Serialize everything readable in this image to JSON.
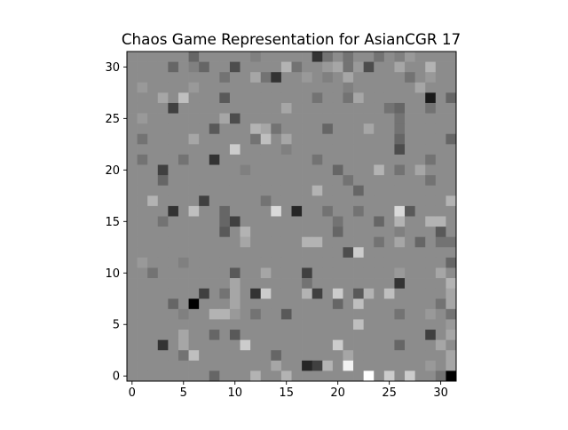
{
  "chart_data": {
    "type": "heatmap",
    "title": "Chaos Game Representation for AsianCGR 17",
    "xlabel": "",
    "ylabel": "",
    "colormap": "gray",
    "xlim": [
      -0.5,
      31.5
    ],
    "ylim": [
      31.5,
      -0.5
    ],
    "x_ticks": [
      0,
      5,
      10,
      15,
      20,
      25,
      30
    ],
    "y_ticks": [
      0,
      5,
      10,
      15,
      20,
      25,
      30
    ],
    "grid": false,
    "value_range": [
      0,
      1
    ],
    "values": [
      [
        0.55,
        0.55,
        0.55,
        0.55,
        0.55,
        0.55,
        0.4,
        0.55,
        0.55,
        0.55,
        0.55,
        0.55,
        0.5,
        0.55,
        0.55,
        0.55,
        0.55,
        0.55,
        0.2,
        0.45,
        0.55,
        0.45,
        0.55,
        0.55,
        0.45,
        0.55,
        0.5,
        0.6,
        0.55,
        0.55,
        0.55,
        0.55
      ],
      [
        0.55,
        0.55,
        0.55,
        0.55,
        0.4,
        0.55,
        0.5,
        0.4,
        0.55,
        0.55,
        0.3,
        0.55,
        0.55,
        0.55,
        0.55,
        0.7,
        0.45,
        0.55,
        0.55,
        0.6,
        0.65,
        0.45,
        0.6,
        0.3,
        0.55,
        0.55,
        0.65,
        0.55,
        0.55,
        0.7,
        0.55,
        0.55
      ],
      [
        0.55,
        0.55,
        0.55,
        0.55,
        0.55,
        0.55,
        0.55,
        0.55,
        0.55,
        0.45,
        0.55,
        0.55,
        0.65,
        0.45,
        0.2,
        0.55,
        0.55,
        0.6,
        0.55,
        0.5,
        0.55,
        0.65,
        0.55,
        0.55,
        0.55,
        0.55,
        0.55,
        0.45,
        0.55,
        0.6,
        0.55,
        0.55
      ],
      [
        0.55,
        0.6,
        0.55,
        0.55,
        0.55,
        0.55,
        0.6,
        0.55,
        0.55,
        0.55,
        0.55,
        0.55,
        0.55,
        0.55,
        0.55,
        0.55,
        0.55,
        0.55,
        0.55,
        0.55,
        0.55,
        0.5,
        0.55,
        0.55,
        0.55,
        0.55,
        0.55,
        0.55,
        0.65,
        0.55,
        0.55,
        0.55
      ],
      [
        0.55,
        0.55,
        0.55,
        0.65,
        0.55,
        0.75,
        0.55,
        0.55,
        0.55,
        0.35,
        0.55,
        0.55,
        0.55,
        0.55,
        0.55,
        0.55,
        0.55,
        0.55,
        0.45,
        0.55,
        0.55,
        0.45,
        0.65,
        0.55,
        0.55,
        0.55,
        0.55,
        0.55,
        0.55,
        0.1,
        0.55,
        0.4
      ],
      [
        0.55,
        0.55,
        0.55,
        0.55,
        0.25,
        0.55,
        0.55,
        0.55,
        0.55,
        0.55,
        0.55,
        0.55,
        0.55,
        0.55,
        0.55,
        0.65,
        0.55,
        0.55,
        0.55,
        0.55,
        0.55,
        0.55,
        0.55,
        0.55,
        0.55,
        0.45,
        0.4,
        0.55,
        0.55,
        0.45,
        0.55,
        0.55
      ],
      [
        0.55,
        0.6,
        0.55,
        0.55,
        0.55,
        0.55,
        0.55,
        0.55,
        0.55,
        0.65,
        0.3,
        0.55,
        0.55,
        0.55,
        0.55,
        0.55,
        0.55,
        0.55,
        0.55,
        0.55,
        0.55,
        0.55,
        0.55,
        0.55,
        0.55,
        0.55,
        0.45,
        0.55,
        0.55,
        0.55,
        0.55,
        0.55
      ],
      [
        0.55,
        0.55,
        0.55,
        0.55,
        0.55,
        0.55,
        0.55,
        0.55,
        0.35,
        0.55,
        0.55,
        0.55,
        0.7,
        0.65,
        0.45,
        0.55,
        0.55,
        0.55,
        0.55,
        0.4,
        0.55,
        0.55,
        0.55,
        0.65,
        0.55,
        0.55,
        0.45,
        0.55,
        0.55,
        0.55,
        0.55,
        0.55
      ],
      [
        0.55,
        0.45,
        0.55,
        0.55,
        0.55,
        0.55,
        0.65,
        0.55,
        0.55,
        0.55,
        0.55,
        0.55,
        0.45,
        0.75,
        0.55,
        0.65,
        0.55,
        0.55,
        0.55,
        0.55,
        0.55,
        0.55,
        0.55,
        0.55,
        0.55,
        0.55,
        0.4,
        0.55,
        0.55,
        0.55,
        0.55,
        0.4
      ],
      [
        0.55,
        0.55,
        0.55,
        0.55,
        0.55,
        0.55,
        0.55,
        0.55,
        0.55,
        0.55,
        0.8,
        0.55,
        0.55,
        0.55,
        0.55,
        0.5,
        0.55,
        0.55,
        0.55,
        0.55,
        0.55,
        0.55,
        0.55,
        0.55,
        0.55,
        0.55,
        0.3,
        0.55,
        0.55,
        0.55,
        0.55,
        0.55
      ],
      [
        0.55,
        0.45,
        0.55,
        0.55,
        0.55,
        0.45,
        0.55,
        0.55,
        0.2,
        0.55,
        0.55,
        0.55,
        0.55,
        0.55,
        0.55,
        0.55,
        0.55,
        0.55,
        0.45,
        0.55,
        0.55,
        0.55,
        0.55,
        0.55,
        0.55,
        0.55,
        0.55,
        0.55,
        0.55,
        0.45,
        0.55,
        0.55
      ],
      [
        0.55,
        0.55,
        0.55,
        0.25,
        0.55,
        0.55,
        0.55,
        0.55,
        0.55,
        0.55,
        0.55,
        0.5,
        0.55,
        0.55,
        0.55,
        0.55,
        0.55,
        0.55,
        0.55,
        0.55,
        0.4,
        0.55,
        0.55,
        0.55,
        0.7,
        0.55,
        0.45,
        0.55,
        0.65,
        0.55,
        0.55,
        0.55
      ],
      [
        0.55,
        0.55,
        0.55,
        0.4,
        0.55,
        0.55,
        0.55,
        0.55,
        0.55,
        0.55,
        0.55,
        0.55,
        0.55,
        0.55,
        0.55,
        0.55,
        0.55,
        0.55,
        0.55,
        0.55,
        0.55,
        0.45,
        0.55,
        0.55,
        0.55,
        0.55,
        0.55,
        0.55,
        0.55,
        0.45,
        0.55,
        0.55
      ],
      [
        0.55,
        0.55,
        0.55,
        0.55,
        0.55,
        0.55,
        0.55,
        0.55,
        0.55,
        0.55,
        0.55,
        0.55,
        0.55,
        0.55,
        0.55,
        0.55,
        0.55,
        0.55,
        0.7,
        0.55,
        0.55,
        0.55,
        0.4,
        0.55,
        0.55,
        0.55,
        0.55,
        0.55,
        0.55,
        0.55,
        0.55,
        0.55
      ],
      [
        0.55,
        0.55,
        0.7,
        0.55,
        0.55,
        0.55,
        0.55,
        0.25,
        0.55,
        0.55,
        0.55,
        0.55,
        0.55,
        0.45,
        0.55,
        0.55,
        0.55,
        0.55,
        0.55,
        0.55,
        0.55,
        0.55,
        0.55,
        0.55,
        0.55,
        0.55,
        0.55,
        0.55,
        0.55,
        0.55,
        0.55,
        0.7
      ],
      [
        0.55,
        0.55,
        0.55,
        0.55,
        0.2,
        0.55,
        0.75,
        0.55,
        0.55,
        0.4,
        0.55,
        0.55,
        0.55,
        0.55,
        0.85,
        0.55,
        0.15,
        0.55,
        0.55,
        0.45,
        0.55,
        0.55,
        0.45,
        0.55,
        0.55,
        0.55,
        0.85,
        0.35,
        0.55,
        0.55,
        0.55,
        0.55
      ],
      [
        0.55,
        0.55,
        0.55,
        0.45,
        0.55,
        0.55,
        0.55,
        0.55,
        0.55,
        0.4,
        0.25,
        0.55,
        0.55,
        0.55,
        0.55,
        0.55,
        0.55,
        0.55,
        0.55,
        0.55,
        0.45,
        0.55,
        0.55,
        0.55,
        0.4,
        0.55,
        0.7,
        0.55,
        0.55,
        0.7,
        0.7,
        0.55
      ],
      [
        0.55,
        0.55,
        0.55,
        0.55,
        0.55,
        0.55,
        0.55,
        0.55,
        0.55,
        0.35,
        0.55,
        0.7,
        0.55,
        0.55,
        0.55,
        0.55,
        0.55,
        0.55,
        0.55,
        0.55,
        0.4,
        0.55,
        0.55,
        0.55,
        0.55,
        0.55,
        0.5,
        0.55,
        0.55,
        0.55,
        0.35,
        0.55
      ],
      [
        0.55,
        0.55,
        0.55,
        0.55,
        0.55,
        0.55,
        0.55,
        0.55,
        0.55,
        0.55,
        0.55,
        0.65,
        0.55,
        0.55,
        0.55,
        0.55,
        0.55,
        0.7,
        0.7,
        0.55,
        0.55,
        0.55,
        0.55,
        0.55,
        0.45,
        0.55,
        0.65,
        0.55,
        0.4,
        0.55,
        0.45,
        0.45
      ],
      [
        0.55,
        0.55,
        0.55,
        0.55,
        0.55,
        0.55,
        0.55,
        0.55,
        0.55,
        0.55,
        0.55,
        0.55,
        0.55,
        0.55,
        0.55,
        0.55,
        0.55,
        0.55,
        0.55,
        0.55,
        0.55,
        0.3,
        0.8,
        0.55,
        0.55,
        0.55,
        0.55,
        0.55,
        0.55,
        0.55,
        0.55,
        0.55
      ],
      [
        0.55,
        0.6,
        0.55,
        0.55,
        0.55,
        0.5,
        0.55,
        0.55,
        0.55,
        0.55,
        0.55,
        0.55,
        0.55,
        0.55,
        0.55,
        0.55,
        0.55,
        0.55,
        0.55,
        0.55,
        0.55,
        0.55,
        0.55,
        0.55,
        0.55,
        0.55,
        0.55,
        0.55,
        0.55,
        0.55,
        0.55,
        0.4
      ],
      [
        0.55,
        0.55,
        0.45,
        0.55,
        0.55,
        0.55,
        0.55,
        0.55,
        0.55,
        0.55,
        0.35,
        0.55,
        0.55,
        0.65,
        0.55,
        0.55,
        0.55,
        0.25,
        0.55,
        0.55,
        0.55,
        0.55,
        0.55,
        0.55,
        0.55,
        0.55,
        0.6,
        0.55,
        0.55,
        0.55,
        0.65,
        0.55
      ],
      [
        0.55,
        0.55,
        0.55,
        0.55,
        0.55,
        0.55,
        0.55,
        0.55,
        0.55,
        0.55,
        0.65,
        0.55,
        0.55,
        0.55,
        0.55,
        0.55,
        0.55,
        0.45,
        0.55,
        0.55,
        0.55,
        0.55,
        0.55,
        0.55,
        0.55,
        0.55,
        0.2,
        0.55,
        0.55,
        0.55,
        0.55,
        0.7
      ],
      [
        0.55,
        0.55,
        0.55,
        0.55,
        0.55,
        0.55,
        0.55,
        0.25,
        0.55,
        0.45,
        0.65,
        0.55,
        0.2,
        0.8,
        0.55,
        0.55,
        0.55,
        0.7,
        0.25,
        0.55,
        0.8,
        0.55,
        0.35,
        0.7,
        0.55,
        0.75,
        0.55,
        0.55,
        0.55,
        0.55,
        0.55,
        0.65
      ],
      [
        0.55,
        0.55,
        0.55,
        0.55,
        0.4,
        0.55,
        0.0,
        0.55,
        0.55,
        0.55,
        0.65,
        0.55,
        0.55,
        0.55,
        0.55,
        0.55,
        0.55,
        0.55,
        0.55,
        0.55,
        0.4,
        0.55,
        0.75,
        0.55,
        0.55,
        0.55,
        0.55,
        0.55,
        0.55,
        0.55,
        0.45,
        0.65
      ],
      [
        0.55,
        0.55,
        0.55,
        0.55,
        0.55,
        0.5,
        0.55,
        0.55,
        0.7,
        0.7,
        0.6,
        0.55,
        0.45,
        0.55,
        0.55,
        0.35,
        0.55,
        0.55,
        0.55,
        0.55,
        0.55,
        0.55,
        0.55,
        0.55,
        0.55,
        0.55,
        0.45,
        0.55,
        0.55,
        0.6,
        0.55,
        0.45
      ],
      [
        0.55,
        0.55,
        0.55,
        0.55,
        0.55,
        0.55,
        0.55,
        0.55,
        0.55,
        0.55,
        0.55,
        0.55,
        0.55,
        0.55,
        0.55,
        0.55,
        0.55,
        0.55,
        0.55,
        0.55,
        0.55,
        0.55,
        0.75,
        0.55,
        0.55,
        0.55,
        0.55,
        0.55,
        0.55,
        0.55,
        0.55,
        0.6
      ],
      [
        0.55,
        0.55,
        0.55,
        0.55,
        0.55,
        0.65,
        0.55,
        0.55,
        0.4,
        0.55,
        0.35,
        0.55,
        0.55,
        0.55,
        0.55,
        0.55,
        0.55,
        0.55,
        0.55,
        0.55,
        0.55,
        0.55,
        0.55,
        0.55,
        0.55,
        0.55,
        0.55,
        0.55,
        0.55,
        0.25,
        0.55,
        0.65
      ],
      [
        0.55,
        0.55,
        0.55,
        0.2,
        0.55,
        0.65,
        0.55,
        0.55,
        0.55,
        0.55,
        0.55,
        0.8,
        0.55,
        0.55,
        0.55,
        0.55,
        0.55,
        0.55,
        0.55,
        0.55,
        0.8,
        0.55,
        0.55,
        0.55,
        0.55,
        0.55,
        0.4,
        0.55,
        0.55,
        0.55,
        0.65,
        0.55
      ],
      [
        0.55,
        0.55,
        0.55,
        0.55,
        0.55,
        0.45,
        0.75,
        0.55,
        0.55,
        0.55,
        0.55,
        0.55,
        0.55,
        0.55,
        0.4,
        0.55,
        0.55,
        0.55,
        0.55,
        0.55,
        0.55,
        0.65,
        0.55,
        0.55,
        0.55,
        0.55,
        0.55,
        0.55,
        0.55,
        0.55,
        0.55,
        0.65
      ],
      [
        0.55,
        0.55,
        0.55,
        0.55,
        0.55,
        0.55,
        0.55,
        0.55,
        0.55,
        0.55,
        0.55,
        0.55,
        0.55,
        0.55,
        0.65,
        0.55,
        0.55,
        0.15,
        0.25,
        0.7,
        0.55,
        0.95,
        0.55,
        0.55,
        0.55,
        0.55,
        0.55,
        0.55,
        0.55,
        0.6,
        0.55,
        0.65
      ],
      [
        0.55,
        0.55,
        0.55,
        0.55,
        0.55,
        0.55,
        0.55,
        0.55,
        0.4,
        0.55,
        0.55,
        0.55,
        0.7,
        0.55,
        0.55,
        0.7,
        0.55,
        0.55,
        0.55,
        0.55,
        0.55,
        0.55,
        0.55,
        1.0,
        0.55,
        0.8,
        0.55,
        0.8,
        0.55,
        0.55,
        0.45,
        0.0
      ]
    ]
  }
}
